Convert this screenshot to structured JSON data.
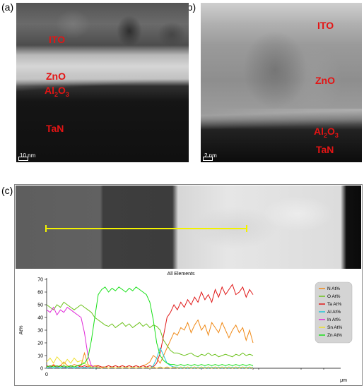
{
  "panels": {
    "a": {
      "letter": "(a)",
      "labels": {
        "ito": "ITO",
        "zno": "ZnO",
        "al2o3_base": "Al",
        "al2o3_sub1": "2",
        "al2o3_mid": "O",
        "al2o3_sub2": "3",
        "tan": "TaN"
      },
      "scale": "10 nm"
    },
    "b": {
      "letter": "(b)",
      "labels": {
        "ito": "ITO",
        "zno": "ZnO",
        "al2o3_base": "Al",
        "al2o3_sub1": "2",
        "al2o3_mid": "O",
        "al2o3_sub2": "3",
        "tan": "TaN"
      },
      "scale": "2 nm"
    },
    "c": {
      "letter": "(c)"
    }
  },
  "colors": {
    "N": "#f08a18",
    "O": "#6cc21c",
    "Ta": "#e01818",
    "Al": "#20c8d8",
    "In": "#e028d8",
    "Sn": "#f0e030",
    "Zn": "#18e018",
    "linescan": "#f2f200"
  },
  "chart_data": {
    "type": "line",
    "title": "All Elements",
    "ylabel": "At%",
    "xlabel": "μm",
    "ylim": [
      0,
      70
    ],
    "yticks": [
      0,
      10,
      20,
      30,
      40,
      50,
      60,
      70
    ],
    "xticks": [
      "0"
    ],
    "x": [
      0,
      1,
      2,
      3,
      4,
      5,
      6,
      7,
      8,
      9,
      10,
      11,
      12,
      13,
      14,
      15,
      16,
      17,
      18,
      19,
      20,
      21,
      22,
      23,
      24,
      25,
      26,
      27,
      28,
      29,
      30,
      31,
      32,
      33,
      34,
      35,
      36,
      37,
      38,
      39,
      40,
      41,
      42,
      43,
      44,
      45,
      46,
      47,
      48,
      49,
      50,
      51,
      52,
      53,
      54,
      55,
      56,
      57,
      58,
      59,
      60
    ],
    "legend_position": "right",
    "series": [
      {
        "name": "N At%",
        "values": [
          2,
          1,
          3,
          1,
          2,
          5,
          2,
          1,
          3,
          2,
          2,
          12,
          3,
          1,
          2,
          2,
          1,
          1,
          2,
          1,
          2,
          1,
          2,
          1,
          2,
          1,
          2,
          1,
          2,
          3,
          5,
          10,
          8,
          4,
          10,
          16,
          22,
          28,
          26,
          32,
          30,
          36,
          28,
          34,
          38,
          30,
          34,
          26,
          36,
          32,
          28,
          36,
          30,
          24,
          30,
          34,
          28,
          32,
          22,
          30,
          20
        ]
      },
      {
        "name": "O At%",
        "values": [
          50,
          48,
          46,
          50,
          48,
          52,
          50,
          48,
          46,
          48,
          50,
          48,
          46,
          44,
          40,
          38,
          36,
          34,
          33,
          35,
          32,
          34,
          36,
          33,
          35,
          32,
          34,
          36,
          33,
          35,
          32,
          34,
          33,
          30,
          22,
          18,
          14,
          12,
          12,
          11,
          10,
          11,
          12,
          10,
          9,
          11,
          10,
          12,
          10,
          11,
          9,
          10,
          11,
          10,
          9,
          11,
          10,
          12,
          10,
          11,
          10
        ]
      },
      {
        "name": "Ta At%",
        "values": [
          2,
          1,
          2,
          1,
          2,
          1,
          1,
          2,
          1,
          2,
          1,
          2,
          1,
          2,
          1,
          2,
          1,
          1,
          2,
          1,
          2,
          1,
          2,
          1,
          2,
          1,
          2,
          1,
          2,
          1,
          2,
          1,
          4,
          12,
          26,
          40,
          44,
          50,
          46,
          52,
          48,
          54,
          50,
          56,
          52,
          60,
          54,
          58,
          52,
          62,
          56,
          64,
          58,
          62,
          66,
          58,
          60,
          64,
          56,
          62,
          58
        ]
      },
      {
        "name": "Al At%",
        "values": [
          0,
          1,
          0,
          1,
          0,
          1,
          0,
          1,
          0,
          1,
          0,
          1,
          0,
          1,
          0,
          1,
          0,
          1,
          0,
          1,
          0,
          1,
          0,
          1,
          0,
          1,
          0,
          1,
          0,
          1,
          0,
          2,
          8,
          16,
          10,
          4,
          2,
          1,
          1,
          0,
          1,
          0,
          1,
          0,
          1,
          0,
          1,
          0,
          1,
          0,
          1,
          0,
          1,
          0,
          1,
          0,
          1,
          0,
          1,
          0,
          1
        ]
      },
      {
        "name": "In At%",
        "values": [
          46,
          44,
          48,
          42,
          46,
          44,
          48,
          46,
          44,
          42,
          40,
          28,
          10,
          2,
          1,
          1,
          0,
          1,
          0,
          1,
          0,
          1,
          0,
          1,
          0,
          1,
          0,
          1,
          0,
          1,
          0,
          1,
          0,
          1,
          0,
          1,
          0,
          1,
          0,
          1,
          0,
          1,
          0,
          1,
          0,
          1,
          0,
          1,
          0,
          1,
          0,
          1,
          0,
          1,
          0,
          1,
          0,
          1,
          0,
          1,
          0
        ]
      },
      {
        "name": "Sn At%",
        "values": [
          5,
          8,
          4,
          9,
          6,
          3,
          7,
          4,
          8,
          5,
          6,
          4,
          2,
          1,
          1,
          1,
          0,
          1,
          0,
          1,
          0,
          1,
          0,
          1,
          0,
          1,
          0,
          1,
          0,
          1,
          0,
          1,
          0,
          1,
          0,
          1,
          0,
          1,
          0,
          1,
          0,
          1,
          0,
          1,
          0,
          1,
          0,
          1,
          0,
          1,
          0,
          1,
          0,
          1,
          0,
          1,
          0,
          1,
          0,
          1,
          0
        ]
      },
      {
        "name": "Zn At%",
        "values": [
          1,
          2,
          1,
          2,
          1,
          2,
          1,
          2,
          1,
          2,
          3,
          4,
          8,
          22,
          40,
          58,
          62,
          64,
          60,
          63,
          61,
          64,
          62,
          60,
          63,
          61,
          64,
          62,
          60,
          58,
          52,
          38,
          20,
          10,
          6,
          4,
          3,
          3,
          2,
          3,
          2,
          3,
          2,
          3,
          2,
          3,
          2,
          3,
          2,
          3,
          2,
          3,
          2,
          3,
          2,
          3,
          2,
          3,
          2,
          3,
          2
        ]
      }
    ]
  }
}
